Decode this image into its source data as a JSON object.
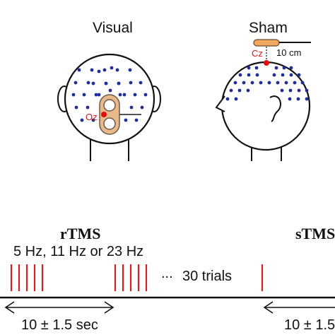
{
  "heads": {
    "visual": {
      "title": "Visual",
      "electrode_label": "Oz"
    },
    "sham": {
      "title": "Sham",
      "electrode_label": "Cz",
      "distance_label": "10 cm"
    }
  },
  "timeline": {
    "rtms_label": "rTMS",
    "rtms_frequencies": "5 Hz, 11 Hz or 23 Hz",
    "ellipsis": "...",
    "trials_label": "30 trials",
    "stms_label": "sTMS",
    "left_interval": "10 ± 1.5 sec",
    "right_interval": "10 ± 1.5"
  },
  "colors": {
    "pulse": "#d42020",
    "electrode": "#1f2f9a",
    "stim_electrode": "#e01010",
    "coil": "#e8b98a",
    "coil_outline": "#6b5a4a",
    "sham_coil": "#f0a860"
  }
}
